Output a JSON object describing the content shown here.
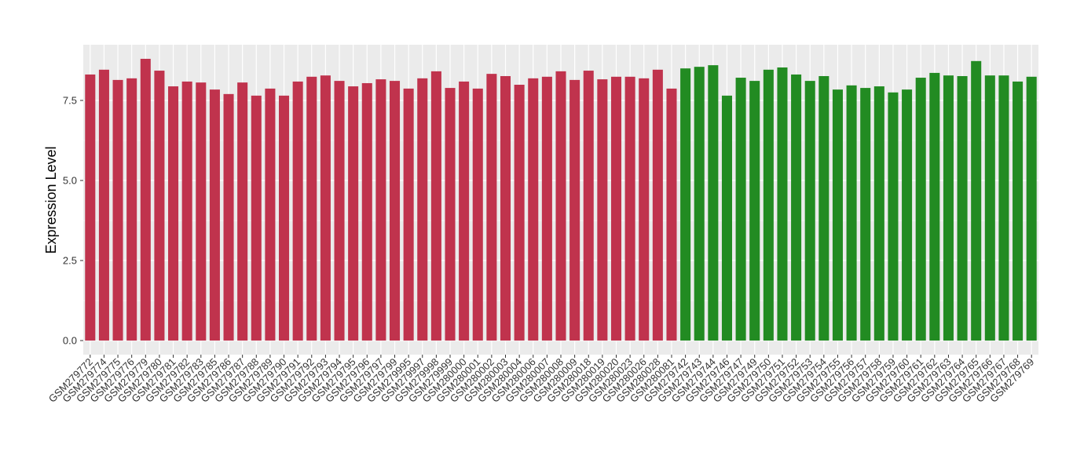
{
  "chart_data": {
    "type": "bar",
    "y_label": "Expression Level",
    "categories": [
      "GSM279772",
      "GSM279774",
      "GSM279775",
      "GSM279776",
      "GSM279779",
      "GSM279780",
      "GSM279781",
      "GSM279782",
      "GSM279783",
      "GSM279785",
      "GSM279786",
      "GSM279787",
      "GSM279788",
      "GSM279789",
      "GSM279790",
      "GSM279791",
      "GSM279792",
      "GSM279793",
      "GSM279794",
      "GSM279795",
      "GSM279796",
      "GSM279797",
      "GSM279799",
      "GSM279995",
      "GSM279997",
      "GSM279998",
      "GSM279999",
      "GSM280000",
      "GSM280001",
      "GSM280002",
      "GSM280003",
      "GSM280004",
      "GSM280006",
      "GSM280007",
      "GSM280008",
      "GSM280009",
      "GSM280018",
      "GSM280019",
      "GSM280020",
      "GSM280023",
      "GSM280026",
      "GSM280028",
      "GSM280081",
      "GSM279742",
      "GSM279743",
      "GSM279744",
      "GSM279746",
      "GSM279747",
      "GSM279749",
      "GSM279750",
      "GSM279751",
      "GSM279752",
      "GSM279753",
      "GSM279754",
      "GSM279755",
      "GSM279756",
      "GSM279757",
      "GSM279758",
      "GSM279759",
      "GSM279760",
      "GSM279761",
      "GSM279762",
      "GSM279763",
      "GSM279764",
      "GSM279765",
      "GSM279766",
      "GSM279767",
      "GSM279768",
      "GSM279769"
    ],
    "values": [
      8.31,
      8.46,
      8.14,
      8.19,
      8.8,
      8.43,
      7.94,
      8.09,
      8.06,
      7.84,
      7.7,
      8.06,
      7.65,
      7.87,
      7.65,
      8.09,
      8.24,
      8.28,
      8.11,
      7.94,
      8.04,
      8.16,
      8.11,
      7.87,
      8.19,
      8.41,
      7.89,
      8.09,
      7.87,
      8.33,
      8.26,
      7.99,
      8.19,
      8.24,
      8.41,
      8.14,
      8.43,
      8.16,
      8.24,
      8.24,
      8.19,
      8.46,
      7.87,
      8.5,
      8.55,
      8.6,
      7.65,
      8.21,
      8.11,
      8.46,
      8.53,
      8.31,
      8.11,
      8.26,
      7.84,
      7.97,
      7.89,
      7.94,
      7.75,
      7.84,
      8.21,
      8.36,
      8.28,
      8.26,
      8.73,
      8.28,
      8.28,
      8.09,
      8.24
    ],
    "colors": [
      "#c0334d",
      "#c0334d",
      "#c0334d",
      "#c0334d",
      "#c0334d",
      "#c0334d",
      "#c0334d",
      "#c0334d",
      "#c0334d",
      "#c0334d",
      "#c0334d",
      "#c0334d",
      "#c0334d",
      "#c0334d",
      "#c0334d",
      "#c0334d",
      "#c0334d",
      "#c0334d",
      "#c0334d",
      "#c0334d",
      "#c0334d",
      "#c0334d",
      "#c0334d",
      "#c0334d",
      "#c0334d",
      "#c0334d",
      "#c0334d",
      "#c0334d",
      "#c0334d",
      "#c0334d",
      "#c0334d",
      "#c0334d",
      "#c0334d",
      "#c0334d",
      "#c0334d",
      "#c0334d",
      "#c0334d",
      "#c0334d",
      "#c0334d",
      "#c0334d",
      "#c0334d",
      "#c0334d",
      "#c0334d",
      "#228b22",
      "#228b22",
      "#228b22",
      "#228b22",
      "#228b22",
      "#228b22",
      "#228b22",
      "#228b22",
      "#228b22",
      "#228b22",
      "#228b22",
      "#228b22",
      "#228b22",
      "#228b22",
      "#228b22",
      "#228b22",
      "#228b22",
      "#228b22",
      "#228b22",
      "#228b22",
      "#228b22",
      "#228b22",
      "#228b22",
      "#228b22",
      "#228b22",
      "#228b22"
    ],
    "ylim": [
      -0.44,
      9.24
    ],
    "yticks": [
      {
        "value": 0,
        "label": "0.0"
      },
      2.5,
      {
        "value": 5,
        "label": "5.0"
      },
      7.5
    ],
    "grid": true
  }
}
